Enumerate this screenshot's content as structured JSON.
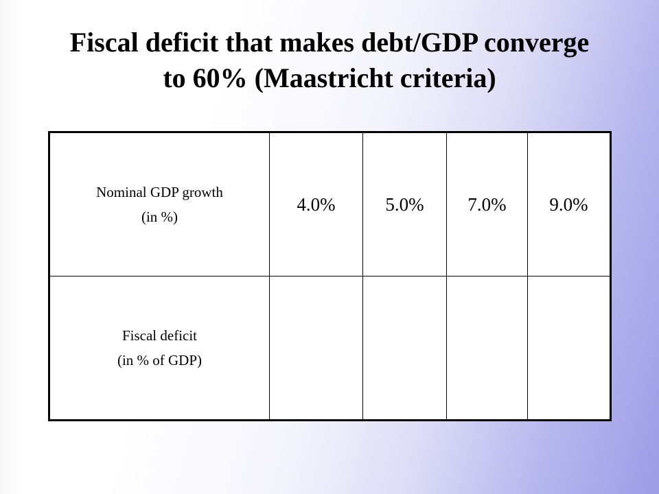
{
  "title": {
    "line1": "Fiscal deficit that makes debt/GDP converge",
    "line2": "to 60% (Maastricht criteria)"
  },
  "table": {
    "growth_row": {
      "label_line1": "Nominal  GDP growth",
      "label_line2": "(in %)",
      "values": [
        "4.0%",
        "5.0%",
        "7.0%",
        "9.0%"
      ]
    },
    "deficit_row": {
      "label_line1": "Fiscal deficit",
      "label_line2": "(in % of GDP)",
      "values": [
        "",
        "",
        "",
        ""
      ]
    }
  },
  "colors": {
    "background_gradient_end": "#9c9ce6",
    "text": "#000000",
    "table_background": "#ffffff"
  }
}
